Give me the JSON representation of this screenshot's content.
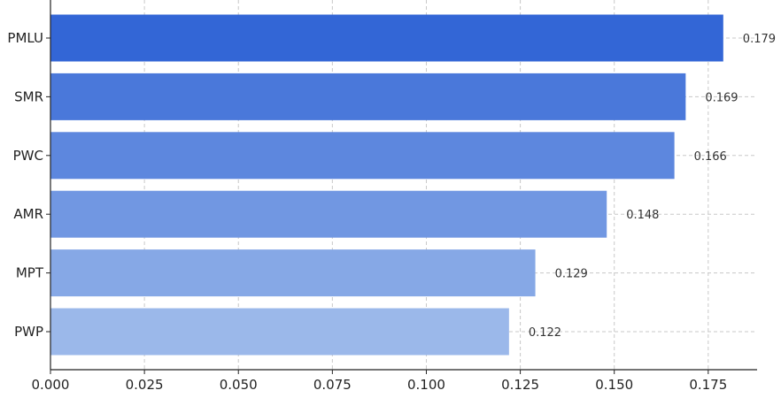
{
  "chart_data": {
    "type": "bar",
    "orientation": "horizontal",
    "title": "",
    "xlabel": "",
    "ylabel": "",
    "categories": [
      "PMLU",
      "SMR",
      "PWC",
      "AMR",
      "MPT",
      "PWP"
    ],
    "values": [
      0.179,
      0.169,
      0.166,
      0.148,
      0.129,
      0.122
    ],
    "value_labels": [
      "0.179",
      "0.169",
      "0.166",
      "0.148",
      "0.129",
      "0.122"
    ],
    "bar_colors": [
      "#3366d6",
      "#4a78da",
      "#5d87de",
      "#7197e2",
      "#86a8e6",
      "#9bb8ea"
    ],
    "xlim": [
      0,
      0.188
    ],
    "xticks": [
      0.0,
      0.025,
      0.05,
      0.075,
      0.1,
      0.125,
      0.15,
      0.175
    ],
    "xtick_labels": [
      "0.000",
      "0.025",
      "0.050",
      "0.075",
      "0.100",
      "0.125",
      "0.150",
      "0.175"
    ],
    "grid": true,
    "legend": "none"
  }
}
